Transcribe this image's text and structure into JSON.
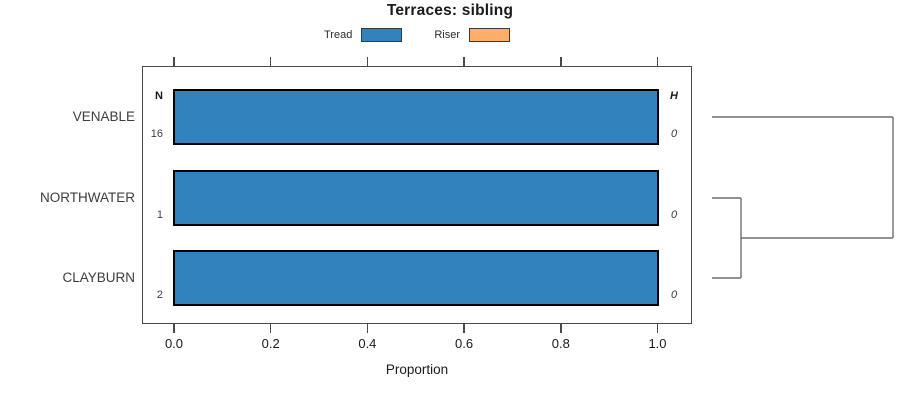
{
  "title": "Terraces: sibling",
  "legend": {
    "items": [
      {
        "label": "Tread",
        "color": "#3182BD"
      },
      {
        "label": "Riser",
        "color": "#FDAE6B"
      }
    ]
  },
  "axis": {
    "xlabel": "Proportion",
    "tick_labels": [
      "0.0",
      "0.2",
      "0.4",
      "0.6",
      "0.8",
      "1.0"
    ]
  },
  "columns": {
    "n_header": "N",
    "h_header": "H"
  },
  "chart_data": {
    "type": "bar",
    "orientation": "horizontal",
    "title": "Terraces: sibling",
    "xlabel": "Proportion",
    "xlim": [
      0,
      1
    ],
    "x_ticks": [
      0.0,
      0.2,
      0.4,
      0.6,
      0.8,
      1.0
    ],
    "grid": false,
    "legend_position": "top",
    "categories": [
      "VENABLE",
      "NORTHWATER",
      "CLAYBURN"
    ],
    "series": [
      {
        "name": "Tread",
        "color": "#3182BD",
        "values": [
          1.0,
          1.0,
          1.0
        ]
      },
      {
        "name": "Riser",
        "color": "#FDAE6B",
        "values": [
          0.0,
          0.0,
          0.0
        ]
      }
    ],
    "annotations": {
      "N_header": "N",
      "N": [
        "16",
        "1",
        "2"
      ],
      "H_header": "H",
      "H": [
        "0",
        "0",
        "0"
      ]
    },
    "dendrogram": {
      "present": true,
      "leaves": [
        "VENABLE",
        "NORTHWATER",
        "CLAYBURN"
      ],
      "structure": "(VENABLE,(NORTHWATER,CLAYBURN))",
      "first_merge": [
        "NORTHWATER",
        "CLAYBURN"
      ]
    }
  }
}
